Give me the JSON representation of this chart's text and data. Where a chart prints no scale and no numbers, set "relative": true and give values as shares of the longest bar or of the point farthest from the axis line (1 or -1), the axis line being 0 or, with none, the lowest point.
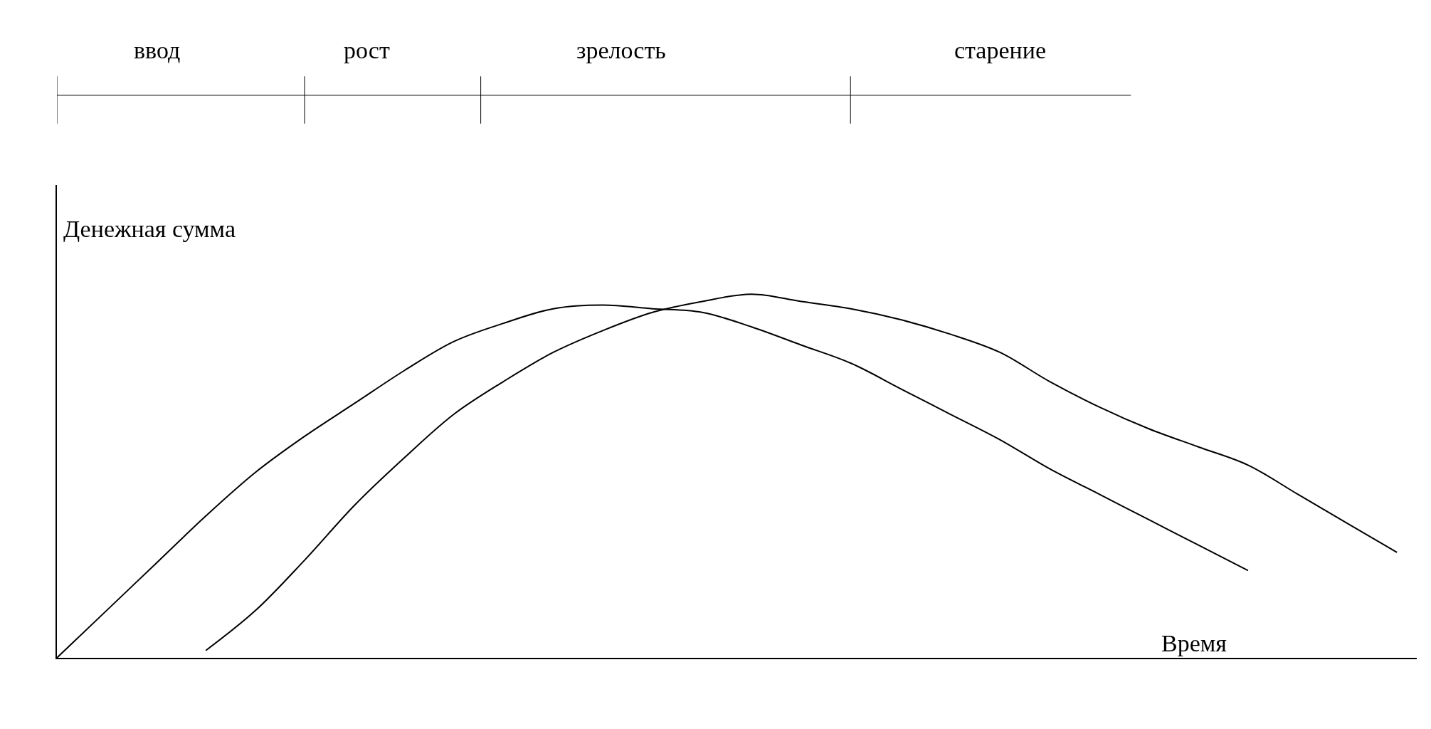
{
  "chart_data": {
    "type": "line",
    "relative": true,
    "xlabel": "Время",
    "ylabel": "Денежная сумма",
    "annotations": [
      "ввод",
      "рост",
      "зрелость",
      "старение"
    ],
    "categories": [
      null,
      null,
      null,
      null,
      null,
      null,
      null,
      null,
      null,
      null,
      null,
      null,
      null,
      null,
      null,
      null,
      null,
      null,
      null,
      null,
      null,
      null,
      null,
      null,
      null,
      null,
      null,
      null
    ],
    "series": [
      {
        "color": "#000000",
        "values": [
          0,
          0.13,
          0.26,
          0.39,
          0.51,
          0.61,
          0.7,
          0.79,
          0.87,
          0.92,
          0.96,
          0.97,
          0.96,
          0.95,
          0.91,
          0.86,
          0.81,
          0.74,
          0.67,
          0.6,
          0.52,
          0.45,
          0.38,
          0.31,
          0.24,
          null,
          null,
          null
        ]
      },
      {
        "color": "#000000",
        "values": [
          null,
          null,
          null,
          0.02,
          0.13,
          0.27,
          0.42,
          0.55,
          0.67,
          0.76,
          0.84,
          0.9,
          0.95,
          0.98,
          1,
          0.98,
          0.96,
          0.93,
          0.89,
          0.84,
          0.76,
          0.69,
          0.63,
          0.58,
          0.53,
          0.45,
          0.37,
          0.29
        ]
      }
    ],
    "legend": false,
    "marker": "none",
    "line_style": "solid"
  }
}
